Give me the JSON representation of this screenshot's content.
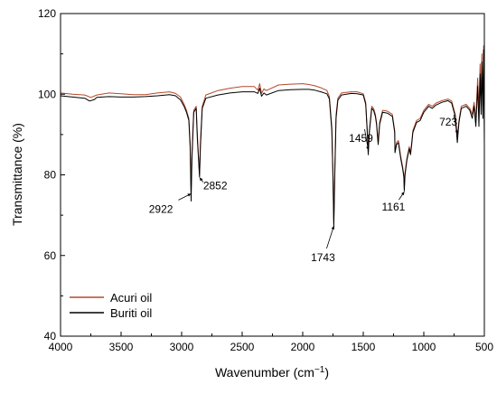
{
  "chart_data": {
    "type": "line",
    "xlabel": "Wavenumber (cm",
    "xlabel_sup": "−1",
    "xlabel_close": ")",
    "ylabel": "Transmittance (%)",
    "xlim": [
      4000,
      500
    ],
    "ylim": [
      40,
      120
    ],
    "x_reversed": true,
    "x_ticks": [
      4000,
      3500,
      3000,
      2500,
      2000,
      1500,
      1000,
      500
    ],
    "y_ticks": [
      40,
      60,
      80,
      100,
      120
    ],
    "grid": false,
    "legend_position": "bottom-left",
    "series": [
      {
        "name": "Acuri oil",
        "color": "#b5482b",
        "points": [
          [
            4000,
            100.3
          ],
          [
            3900,
            100.0
          ],
          [
            3800,
            99.8
          ],
          [
            3750,
            99.2
          ],
          [
            3700,
            99.8
          ],
          [
            3600,
            100.3
          ],
          [
            3500,
            100.1
          ],
          [
            3400,
            99.9
          ],
          [
            3300,
            99.9
          ],
          [
            3200,
            100.3
          ],
          [
            3100,
            100.6
          ],
          [
            3050,
            100.2
          ],
          [
            3010,
            99.3
          ],
          [
            2980,
            97.5
          ],
          [
            2960,
            96.0
          ],
          [
            2940,
            94.0
          ],
          [
            2930,
            88.0
          ],
          [
            2922,
            76.0
          ],
          [
            2915,
            85.0
          ],
          [
            2900,
            96.0
          ],
          [
            2880,
            97.0
          ],
          [
            2870,
            90.0
          ],
          [
            2860,
            84.0
          ],
          [
            2852,
            80.0
          ],
          [
            2845,
            88.0
          ],
          [
            2830,
            97.0
          ],
          [
            2800,
            99.8
          ],
          [
            2700,
            100.9
          ],
          [
            2600,
            101.5
          ],
          [
            2500,
            101.9
          ],
          [
            2400,
            101.9
          ],
          [
            2370,
            101.0
          ],
          [
            2355,
            102.6
          ],
          [
            2340,
            100.2
          ],
          [
            2320,
            101.3
          ],
          [
            2300,
            100.9
          ],
          [
            2200,
            102.3
          ],
          [
            2100,
            102.5
          ],
          [
            2000,
            102.6
          ],
          [
            1950,
            102.4
          ],
          [
            1900,
            102.1
          ],
          [
            1850,
            101.6
          ],
          [
            1800,
            100.9
          ],
          [
            1780,
            99.4
          ],
          [
            1760,
            92.0
          ],
          [
            1750,
            80.0
          ],
          [
            1743,
            68.0
          ],
          [
            1736,
            80.0
          ],
          [
            1725,
            95.0
          ],
          [
            1710,
            99.0
          ],
          [
            1680,
            100.3
          ],
          [
            1600,
            100.6
          ],
          [
            1550,
            100.6
          ],
          [
            1500,
            100.1
          ],
          [
            1480,
            98.0
          ],
          [
            1465,
            90.0
          ],
          [
            1459,
            85.5
          ],
          [
            1450,
            91.0
          ],
          [
            1430,
            97.0
          ],
          [
            1415,
            96.5
          ],
          [
            1400,
            95.0
          ],
          [
            1390,
            93.0
          ],
          [
            1377,
            88.0
          ],
          [
            1365,
            93.0
          ],
          [
            1340,
            96.0
          ],
          [
            1300,
            95.8
          ],
          [
            1260,
            95.0
          ],
          [
            1240,
            91.0
          ],
          [
            1238,
            86.0
          ],
          [
            1225,
            88.0
          ],
          [
            1210,
            88.5
          ],
          [
            1190,
            84.5
          ],
          [
            1175,
            82.0
          ],
          [
            1165,
            80.0
          ],
          [
            1161,
            76.5
          ],
          [
            1155,
            80.5
          ],
          [
            1140,
            84.0
          ],
          [
            1120,
            87.0
          ],
          [
            1110,
            85.5
          ],
          [
            1100,
            88.0
          ],
          [
            1090,
            91.0
          ],
          [
            1060,
            93.5
          ],
          [
            1030,
            94.0
          ],
          [
            1000,
            96.0
          ],
          [
            960,
            97.5
          ],
          [
            930,
            97.0
          ],
          [
            900,
            97.8
          ],
          [
            850,
            98.4
          ],
          [
            800,
            98.8
          ],
          [
            770,
            98.3
          ],
          [
            740,
            95.0
          ],
          [
            723,
            89.5
          ],
          [
            710,
            93.5
          ],
          [
            690,
            97.0
          ],
          [
            650,
            97.5
          ],
          [
            620,
            96.5
          ],
          [
            600,
            95.0
          ],
          [
            585,
            98.0
          ],
          [
            570,
            94.0
          ],
          [
            555,
            104.0
          ],
          [
            545,
            96.0
          ],
          [
            535,
            107.5
          ],
          [
            527,
            98.0
          ],
          [
            520,
            110.0
          ],
          [
            512,
            96.0
          ],
          [
            506,
            112.0
          ],
          [
            500,
            101.0
          ]
        ]
      },
      {
        "name": "Buriti oil",
        "color": "#000000",
        "points": [
          [
            4000,
            99.6
          ],
          [
            3900,
            99.3
          ],
          [
            3800,
            99.0
          ],
          [
            3760,
            98.3
          ],
          [
            3720,
            98.7
          ],
          [
            3700,
            99.2
          ],
          [
            3600,
            99.4
          ],
          [
            3500,
            99.3
          ],
          [
            3400,
            99.3
          ],
          [
            3300,
            99.4
          ],
          [
            3200,
            99.6
          ],
          [
            3100,
            99.9
          ],
          [
            3050,
            99.6
          ],
          [
            3010,
            98.6
          ],
          [
            2980,
            97.0
          ],
          [
            2960,
            95.5
          ],
          [
            2940,
            93.5
          ],
          [
            2930,
            87.0
          ],
          [
            2922,
            73.5
          ],
          [
            2915,
            84.0
          ],
          [
            2900,
            95.5
          ],
          [
            2880,
            96.5
          ],
          [
            2870,
            89.0
          ],
          [
            2860,
            83.5
          ],
          [
            2852,
            79.5
          ],
          [
            2845,
            87.0
          ],
          [
            2830,
            96.5
          ],
          [
            2800,
            99.0
          ],
          [
            2700,
            99.8
          ],
          [
            2600,
            100.3
          ],
          [
            2500,
            100.6
          ],
          [
            2400,
            100.6
          ],
          [
            2370,
            100.2
          ],
          [
            2355,
            101.5
          ],
          [
            2340,
            99.5
          ],
          [
            2320,
            100.3
          ],
          [
            2300,
            99.8
          ],
          [
            2200,
            100.9
          ],
          [
            2100,
            101.1
          ],
          [
            2000,
            101.2
          ],
          [
            1950,
            101.2
          ],
          [
            1900,
            101.0
          ],
          [
            1850,
            100.6
          ],
          [
            1800,
            100.1
          ],
          [
            1780,
            98.8
          ],
          [
            1760,
            91.0
          ],
          [
            1750,
            79.0
          ],
          [
            1743,
            67.0
          ],
          [
            1736,
            79.0
          ],
          [
            1725,
            94.0
          ],
          [
            1710,
            98.5
          ],
          [
            1680,
            99.8
          ],
          [
            1600,
            100.2
          ],
          [
            1550,
            100.1
          ],
          [
            1500,
            99.8
          ],
          [
            1480,
            97.5
          ],
          [
            1465,
            89.5
          ],
          [
            1459,
            85.0
          ],
          [
            1450,
            90.5
          ],
          [
            1430,
            96.5
          ],
          [
            1415,
            96.0
          ],
          [
            1400,
            94.5
          ],
          [
            1390,
            92.5
          ],
          [
            1377,
            87.5
          ],
          [
            1365,
            92.5
          ],
          [
            1340,
            95.5
          ],
          [
            1300,
            95.3
          ],
          [
            1260,
            94.5
          ],
          [
            1240,
            90.5
          ],
          [
            1238,
            85.5
          ],
          [
            1225,
            87.5
          ],
          [
            1210,
            88.0
          ],
          [
            1190,
            84.0
          ],
          [
            1175,
            81.5
          ],
          [
            1165,
            79.5
          ],
          [
            1161,
            76.0
          ],
          [
            1155,
            80.0
          ],
          [
            1140,
            83.5
          ],
          [
            1120,
            86.5
          ],
          [
            1110,
            85.0
          ],
          [
            1100,
            87.5
          ],
          [
            1090,
            90.5
          ],
          [
            1060,
            93.0
          ],
          [
            1030,
            93.5
          ],
          [
            1000,
            95.5
          ],
          [
            960,
            97.0
          ],
          [
            930,
            96.5
          ],
          [
            900,
            97.3
          ],
          [
            850,
            98.0
          ],
          [
            800,
            98.4
          ],
          [
            770,
            97.8
          ],
          [
            740,
            94.5
          ],
          [
            723,
            88.0
          ],
          [
            710,
            93.0
          ],
          [
            690,
            96.5
          ],
          [
            650,
            97.0
          ],
          [
            620,
            96.0
          ],
          [
            600,
            94.0
          ],
          [
            585,
            97.0
          ],
          [
            570,
            92.0
          ],
          [
            555,
            102.0
          ],
          [
            545,
            92.0
          ],
          [
            535,
            105.0
          ],
          [
            527,
            95.0
          ],
          [
            520,
            108.0
          ],
          [
            512,
            94.0
          ],
          [
            506,
            111.0
          ],
          [
            500,
            88.0
          ]
        ]
      }
    ],
    "annotations": [
      {
        "label": "2922",
        "x": 2922,
        "y": 76.0
      },
      {
        "label": "2852",
        "x": 2852,
        "y": 80.0
      },
      {
        "label": "1743",
        "x": 1743,
        "y": 68.0
      },
      {
        "label": "1459",
        "x": 1459,
        "y": 85.5
      },
      {
        "label": "1161",
        "x": 1161,
        "y": 76.5
      },
      {
        "label": "723",
        "x": 723,
        "y": 89.5
      }
    ]
  }
}
